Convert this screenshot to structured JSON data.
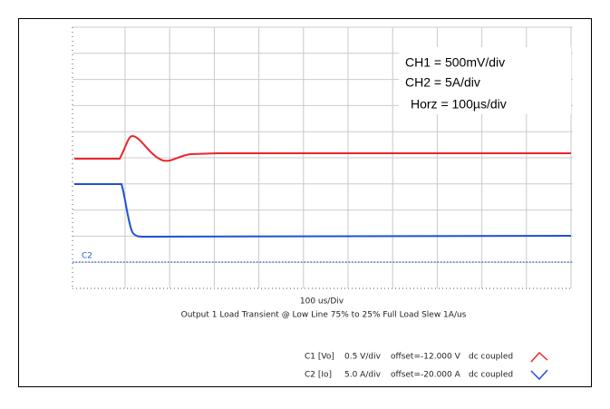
{
  "settings": [
    "CH1 = 500mV/div",
    "CH2 = 5A/div",
    "Horz = 100µs/div"
  ],
  "channel_marker": "C2",
  "time_base": "100 us/Div",
  "caption": "Output 1 Load Transient @ Low Line 75% to 25% Full Load Slew 1A/us",
  "legend": [
    {
      "channel": "C1 [Vo]",
      "scale": "0.5 V/div",
      "offset": "offset=-12.000 V",
      "coupling": "dc coupled"
    },
    {
      "channel": "C2 [Io]",
      "scale": "5.0 A/div",
      "offset": "offset=-20.000 A",
      "coupling": "dc coupled"
    }
  ]
}
